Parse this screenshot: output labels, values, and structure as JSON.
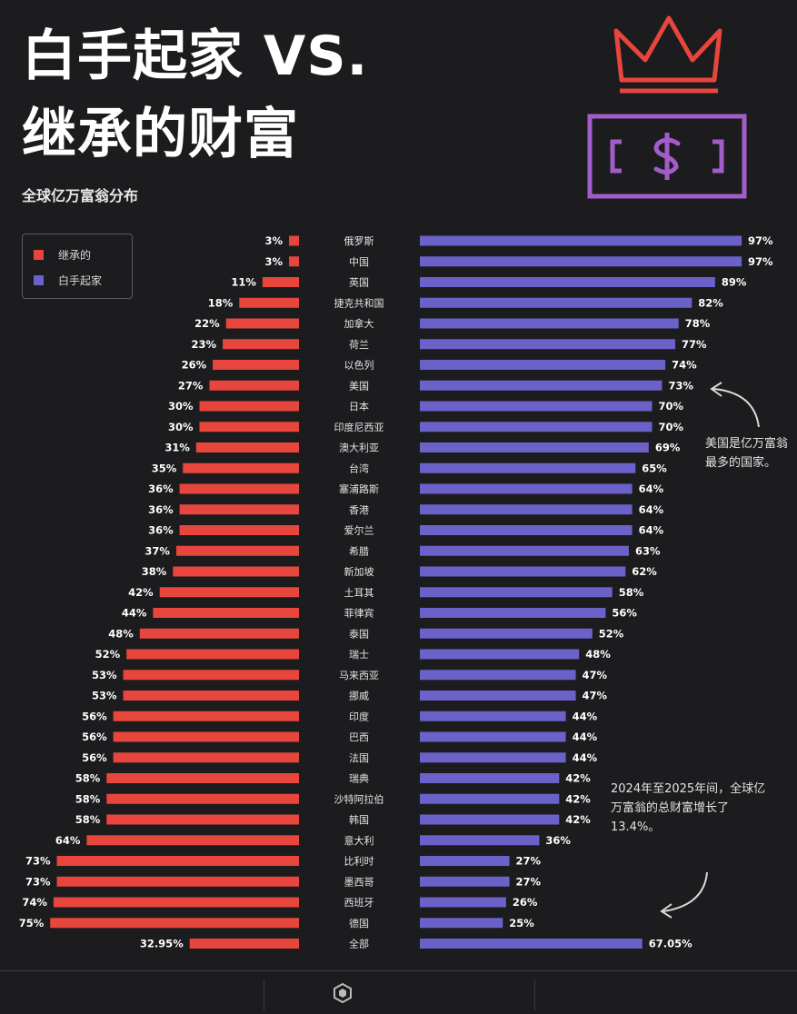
{
  "header": {
    "title_line1": "白手起家 VS.",
    "title_line2": "继承的财富",
    "subtitle": "全球亿万富翁分布"
  },
  "legend": {
    "items": [
      {
        "label": "继承的",
        "color": "#e8463c"
      },
      {
        "label": "白手起家",
        "color": "#6a62c8"
      }
    ]
  },
  "notes": {
    "usa": "美国是亿万富翁最多的国家。",
    "growth": "2024年至2025年间，全球亿万富翁的总财富增长了13.4%。"
  },
  "colors": {
    "inherited": "#e8463c",
    "self_made": "#6a62c8",
    "crown": "#e8463c",
    "dollar_box": "#a35dc8"
  },
  "icons": [
    "crown-icon",
    "dollar-bill-icon",
    "curved-arrow-icon",
    "footer-logo-icon"
  ],
  "chart_data": {
    "type": "bar",
    "orientation": "horizontal-diverging",
    "categories": [
      "俄罗斯",
      "中国",
      "英国",
      "捷克共和国",
      "加拿大",
      "荷兰",
      "以色列",
      "美国",
      "日本",
      "印度尼西亚",
      "澳大利亚",
      "台湾",
      "塞浦路斯",
      "香港",
      "爱尔兰",
      "希腊",
      "新加坡",
      "土耳其",
      "菲律宾",
      "泰国",
      "瑞士",
      "马来西亚",
      "挪威",
      "印度",
      "巴西",
      "法国",
      "瑞典",
      "沙特阿拉伯",
      "韩国",
      "意大利",
      "比利时",
      "墨西哥",
      "西班牙",
      "德国",
      "全部"
    ],
    "series": [
      {
        "name": "继承的",
        "values": [
          3,
          3,
          11,
          18,
          22,
          23,
          26,
          27,
          30,
          30,
          31,
          35,
          36,
          36,
          36,
          37,
          38,
          42,
          44,
          48,
          52,
          53,
          53,
          56,
          56,
          56,
          58,
          58,
          58,
          64,
          73,
          73,
          74,
          75,
          32.95
        ],
        "labels": [
          "3%",
          "3%",
          "11%",
          "18%",
          "22%",
          "23%",
          "26%",
          "27%",
          "30%",
          "30%",
          "31%",
          "35%",
          "36%",
          "36%",
          "36%",
          "37%",
          "38%",
          "42%",
          "44%",
          "48%",
          "52%",
          "53%",
          "53%",
          "56%",
          "56%",
          "56%",
          "58%",
          "58%",
          "58%",
          "64%",
          "73%",
          "73%",
          "74%",
          "75%",
          "32.95%"
        ]
      },
      {
        "name": "白手起家",
        "values": [
          97,
          97,
          89,
          82,
          78,
          77,
          74,
          73,
          70,
          70,
          69,
          65,
          64,
          64,
          64,
          63,
          62,
          58,
          56,
          52,
          48,
          47,
          47,
          44,
          44,
          44,
          42,
          42,
          42,
          36,
          27,
          27,
          26,
          25,
          67.05
        ],
        "labels": [
          "97%",
          "97%",
          "89%",
          "82%",
          "78%",
          "77%",
          "74%",
          "73%",
          "70%",
          "70%",
          "69%",
          "65%",
          "64%",
          "64%",
          "64%",
          "63%",
          "62%",
          "58%",
          "56%",
          "52%",
          "48%",
          "47%",
          "47%",
          "44%",
          "44%",
          "44%",
          "42%",
          "42%",
          "42%",
          "36%",
          "27%",
          "27%",
          "26%",
          "25%",
          "67.05%"
        ]
      }
    ],
    "xlim": [
      0,
      100
    ],
    "unit": "%",
    "grid": false,
    "legend_position": "top-left"
  }
}
